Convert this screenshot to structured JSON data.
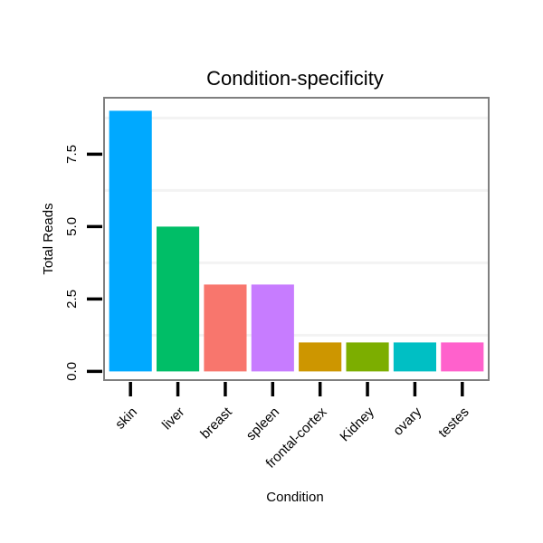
{
  "chart_data": {
    "type": "bar",
    "title": "Condition-specificity",
    "xlabel": "Condition",
    "ylabel": "Total Reads",
    "categories": [
      "skin",
      "liver",
      "breast",
      "spleen",
      "frontal-cortex",
      "Kidney",
      "ovary",
      "testes"
    ],
    "values": [
      9,
      5,
      3,
      3,
      1,
      1,
      1,
      1
    ],
    "colors": [
      "#00A9FF",
      "#00BE67",
      "#F8766D",
      "#C77CFF",
      "#CD9600",
      "#7CAE00",
      "#00BFC4",
      "#FF61CC"
    ],
    "ylim": [
      -0.3,
      9.45
    ],
    "yticks": [
      0,
      2.5,
      5,
      7.5
    ],
    "ytick_labels": [
      "0.0",
      "2.5",
      "5.0",
      "7.5"
    ],
    "grid": true,
    "legend": "none"
  }
}
